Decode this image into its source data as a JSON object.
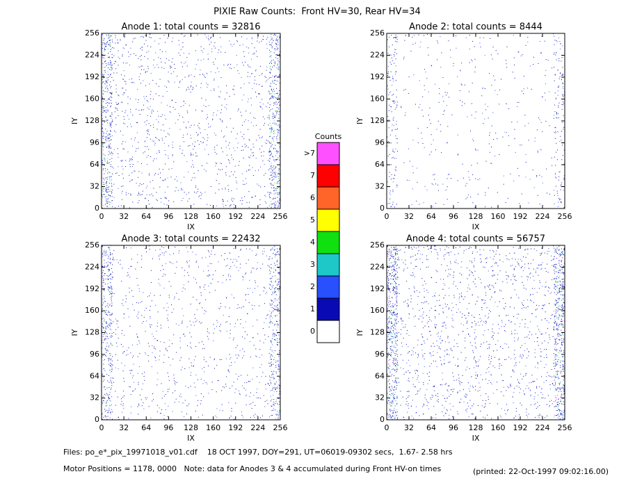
{
  "header": {
    "title": "PIXIE Raw Counts:  Front HV=30, Rear HV=34"
  },
  "chart_data": [
    {
      "type": "heatmap",
      "title": "Anode 1: total counts = 32816",
      "xlabel": "IX",
      "ylabel": "IY",
      "xlim": [
        0,
        256
      ],
      "ylim": [
        0,
        256
      ],
      "xticks": [
        0,
        32,
        64,
        96,
        128,
        160,
        192,
        224,
        256
      ],
      "yticks": [
        0,
        32,
        64,
        96,
        128,
        160,
        192,
        224,
        256
      ]
    },
    {
      "type": "heatmap",
      "title": "Anode 2: total counts = 8444",
      "xlabel": "IX",
      "ylabel": "IY",
      "xlim": [
        0,
        256
      ],
      "ylim": [
        0,
        256
      ],
      "xticks": [
        0,
        32,
        64,
        96,
        128,
        160,
        192,
        224,
        256
      ],
      "yticks": [
        0,
        32,
        64,
        96,
        128,
        160,
        192,
        224,
        256
      ]
    },
    {
      "type": "heatmap",
      "title": "Anode 3: total counts = 22432",
      "xlabel": "IX",
      "ylabel": "IY",
      "xlim": [
        0,
        256
      ],
      "ylim": [
        0,
        256
      ],
      "xticks": [
        0,
        32,
        64,
        96,
        128,
        160,
        192,
        224,
        256
      ],
      "yticks": [
        0,
        32,
        64,
        96,
        128,
        160,
        192,
        224,
        256
      ]
    },
    {
      "type": "heatmap",
      "title": "Anode 4: total counts = 56757",
      "xlabel": "IX",
      "ylabel": "IY",
      "xlim": [
        0,
        256
      ],
      "ylim": [
        0,
        256
      ],
      "xticks": [
        0,
        32,
        64,
        96,
        128,
        160,
        192,
        224,
        256
      ],
      "yticks": [
        0,
        32,
        64,
        96,
        128,
        160,
        192,
        224,
        256
      ]
    }
  ],
  "colorbar": {
    "title": "Counts",
    "levels": [
      {
        "label": "0",
        "color": "#ffffff"
      },
      {
        "label": "1",
        "color": "#0a0ab4"
      },
      {
        "label": "2",
        "color": "#2850ff"
      },
      {
        "label": "3",
        "color": "#1ec8c8"
      },
      {
        "label": "4",
        "color": "#10e010"
      },
      {
        "label": "5",
        "color": "#ffff00"
      },
      {
        "label": "6",
        "color": "#ff6428"
      },
      {
        "label": "7",
        "color": "#ff0000"
      },
      {
        "label": ">7",
        "color": "#ff50ff"
      }
    ]
  },
  "footer": {
    "files": "Files: po_e*_pix_19971018_v01.cdf    18 OCT 1997, DOY=291, UT=06019-09302 secs,  1.67- 2.58 hrs",
    "motor": "Motor Positions = 1178, 0000   Note: data for Anodes 3 & 4 accumulated during Front HV-on times",
    "printed": "(printed: 22-Oct-1997 09:02:16.00)"
  }
}
